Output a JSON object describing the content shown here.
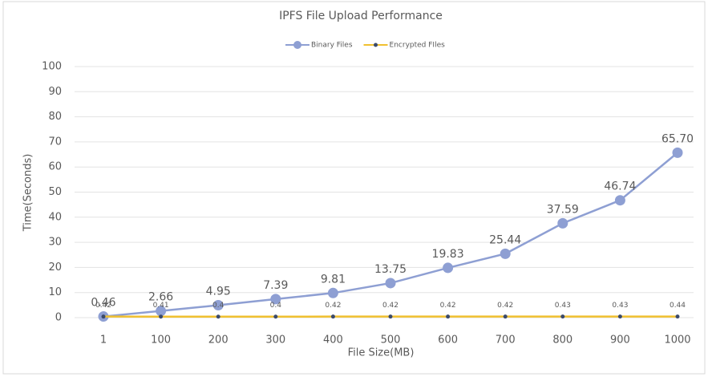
{
  "chart_data": {
    "type": "line",
    "title": "IPFS File Upload Performance",
    "xlabel": "File Size(MB)",
    "ylabel": "Time(Seconds)",
    "categories": [
      "1",
      "100",
      "200",
      "300",
      "400",
      "500",
      "600",
      "700",
      "800",
      "900",
      "1000"
    ],
    "series": [
      {
        "name": "Binary Files",
        "color": "#8e9fd3",
        "marker_color": "#8e9fd3",
        "values": [
          0.46,
          2.66,
          4.95,
          7.39,
          9.81,
          13.75,
          19.83,
          25.44,
          37.59,
          46.74,
          65.7
        ],
        "value_labels": [
          "0.46",
          "2.66",
          "4.95",
          "7.39",
          "9.81",
          "13.75",
          "19.83",
          "25.44",
          "37.59",
          "46.74",
          "65.70"
        ]
      },
      {
        "name": "Encrypted FIles",
        "color": "#f0c030",
        "marker_color": "#3b4a6b",
        "values": [
          0.42,
          0.41,
          0.4,
          0.4,
          0.42,
          0.42,
          0.42,
          0.42,
          0.43,
          0.43,
          0.44
        ]
      }
    ],
    "ylim": [
      0,
      100
    ],
    "yticks": [
      0,
      10,
      20,
      30,
      40,
      50,
      60,
      70,
      80,
      90,
      100
    ],
    "grid": true,
    "legend": "top"
  }
}
